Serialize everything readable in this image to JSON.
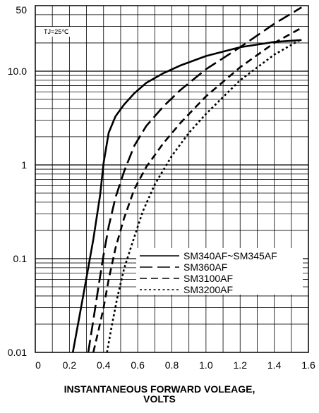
{
  "chart_data": {
    "type": "line",
    "xlabel_line1": "INSTANTANEOUS FORWARD VOLEAGE,",
    "xlabel_line2": "VOLTS",
    "ylabel": "",
    "annotation": "TJ=25℃",
    "x_scale": "linear",
    "y_scale": "log",
    "xlim": [
      0,
      1.6
    ],
    "ylim": [
      0.01,
      50
    ],
    "grid": true,
    "legend_position": "lower-right",
    "x_ticks": [
      {
        "value": 0,
        "label": "0"
      },
      {
        "value": 0.2,
        "label": "0.2"
      },
      {
        "value": 0.4,
        "label": "0.4"
      },
      {
        "value": 0.6,
        "label": "0.6"
      },
      {
        "value": 0.8,
        "label": "0.8"
      },
      {
        "value": 1.0,
        "label": "1.0"
      },
      {
        "value": 1.2,
        "label": "1.2"
      },
      {
        "value": 1.4,
        "label": "1.4"
      },
      {
        "value": 1.6,
        "label": "1.6"
      }
    ],
    "y_ticks": [
      {
        "value": 0.01,
        "label": "0.01"
      },
      {
        "value": 0.1,
        "label": "0.1"
      },
      {
        "value": 1,
        "label": "1"
      },
      {
        "value": 10,
        "label": "10.0"
      },
      {
        "value": 50,
        "label": "50"
      }
    ],
    "series": [
      {
        "name": "SM340AF~SM345AF",
        "dash": "solid",
        "x": [
          0.22,
          0.26,
          0.3,
          0.34,
          0.38,
          0.4,
          0.43,
          0.47,
          0.52,
          0.58,
          0.65,
          0.75,
          0.85,
          1.0,
          1.2,
          1.4,
          1.56
        ],
        "y": [
          0.01,
          0.025,
          0.063,
          0.16,
          0.48,
          1.05,
          2.2,
          3.3,
          4.4,
          5.8,
          7.5,
          9.5,
          11.5,
          14.5,
          18,
          20.5,
          21.5
        ]
      },
      {
        "name": "SM360AF",
        "dash": "long",
        "x": [
          0.31,
          0.34,
          0.37,
          0.4,
          0.43,
          0.47,
          0.52,
          0.58,
          0.65,
          0.75,
          0.85,
          1.0,
          1.2,
          1.4,
          1.56
        ],
        "y": [
          0.01,
          0.022,
          0.05,
          0.11,
          0.22,
          0.45,
          0.85,
          1.6,
          2.6,
          4.2,
          6.3,
          10.5,
          18,
          32,
          48
        ]
      },
      {
        "name": "SM3100AF",
        "dash": "medium",
        "x": [
          0.34,
          0.37,
          0.4,
          0.43,
          0.47,
          0.52,
          0.58,
          0.65,
          0.75,
          0.85,
          1.0,
          1.2,
          1.4,
          1.56
        ],
        "y": [
          0.01,
          0.017,
          0.03,
          0.06,
          0.13,
          0.27,
          0.55,
          0.95,
          1.7,
          2.8,
          5.4,
          11,
          20,
          29
        ]
      },
      {
        "name": "SM3200AF",
        "dash": "dotted",
        "x": [
          0.42,
          0.45,
          0.48,
          0.52,
          0.57,
          0.63,
          0.7,
          0.8,
          0.9,
          1.0,
          1.2,
          1.4,
          1.56
        ],
        "y": [
          0.01,
          0.02,
          0.038,
          0.078,
          0.15,
          0.32,
          0.62,
          1.25,
          2.2,
          3.5,
          8,
          15,
          22
        ]
      }
    ]
  }
}
